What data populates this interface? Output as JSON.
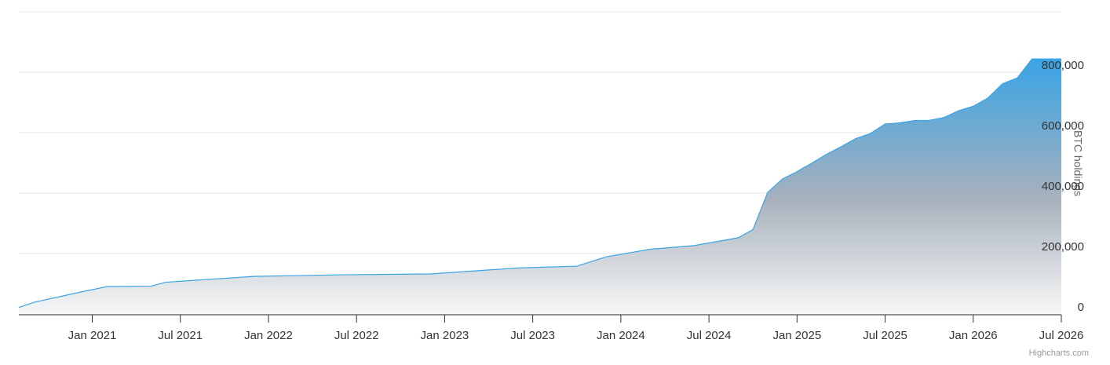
{
  "chart_data": {
    "type": "area",
    "x": [
      "2020-08",
      "2020-09",
      "2020-12",
      "2021-02",
      "2021-05",
      "2021-06",
      "2021-12",
      "2022-06",
      "2022-12",
      "2023-06",
      "2023-10",
      "2023-12",
      "2024-03",
      "2024-06",
      "2024-09",
      "2024-10",
      "2024-11",
      "2024-12",
      "2025-01",
      "2025-02",
      "2025-03",
      "2025-04",
      "2025-05",
      "2025-06",
      "2025-07",
      "2025-08",
      "2025-09",
      "2025-10",
      "2025-11",
      "2025-12",
      "2026-01",
      "2026-02",
      "2026-03",
      "2026-04",
      "2026-05",
      "2026-06",
      "2026-07"
    ],
    "series": [
      {
        "name": "BTC holdings",
        "color": "#3aa4e6",
        "values": [
          21454,
          38250,
          70470,
          90531,
          92079,
          105085,
          124391,
          129699,
          132500,
          152333,
          158245,
          189150,
          214246,
          226331,
          252220,
          279420,
          402100,
          446400,
          471107,
          499096,
          528185,
          553555,
          580250,
          597325,
          628791,
          632457,
          640031,
          640808,
          650000,
          672497,
          687410,
          714644,
          762099,
          780897,
          843738,
          843738,
          843738
        ]
      }
    ],
    "y_axis_title": "BTC holdings",
    "xlim": [
      "2020-08",
      "2026-07"
    ],
    "xticks": [
      {
        "value": "2021-01",
        "label": "Jan 2021"
      },
      {
        "value": "2021-07",
        "label": "Jul 2021"
      },
      {
        "value": "2022-01",
        "label": "Jan 2022"
      },
      {
        "value": "2022-07",
        "label": "Jul 2022"
      },
      {
        "value": "2023-01",
        "label": "Jan 2023"
      },
      {
        "value": "2023-07",
        "label": "Jul 2023"
      },
      {
        "value": "2024-01",
        "label": "Jan 2024"
      },
      {
        "value": "2024-07",
        "label": "Jul 2024"
      },
      {
        "value": "2025-01",
        "label": "Jan 2025"
      },
      {
        "value": "2025-07",
        "label": "Jul 2025"
      },
      {
        "value": "2026-01",
        "label": "Jan 2026"
      },
      {
        "value": "2026-07",
        "label": "Jul 2026"
      }
    ],
    "ylim": [
      0,
      1000000
    ],
    "yticks": [
      0,
      {
        "value": 200000,
        "label": "200,000"
      },
      {
        "value": 400000,
        "label": "400,000"
      },
      {
        "value": 600000,
        "label": "600,000"
      },
      {
        "value": 800000,
        "label": "800,000"
      }
    ],
    "grid": true,
    "credits": "Highcharts.com"
  }
}
